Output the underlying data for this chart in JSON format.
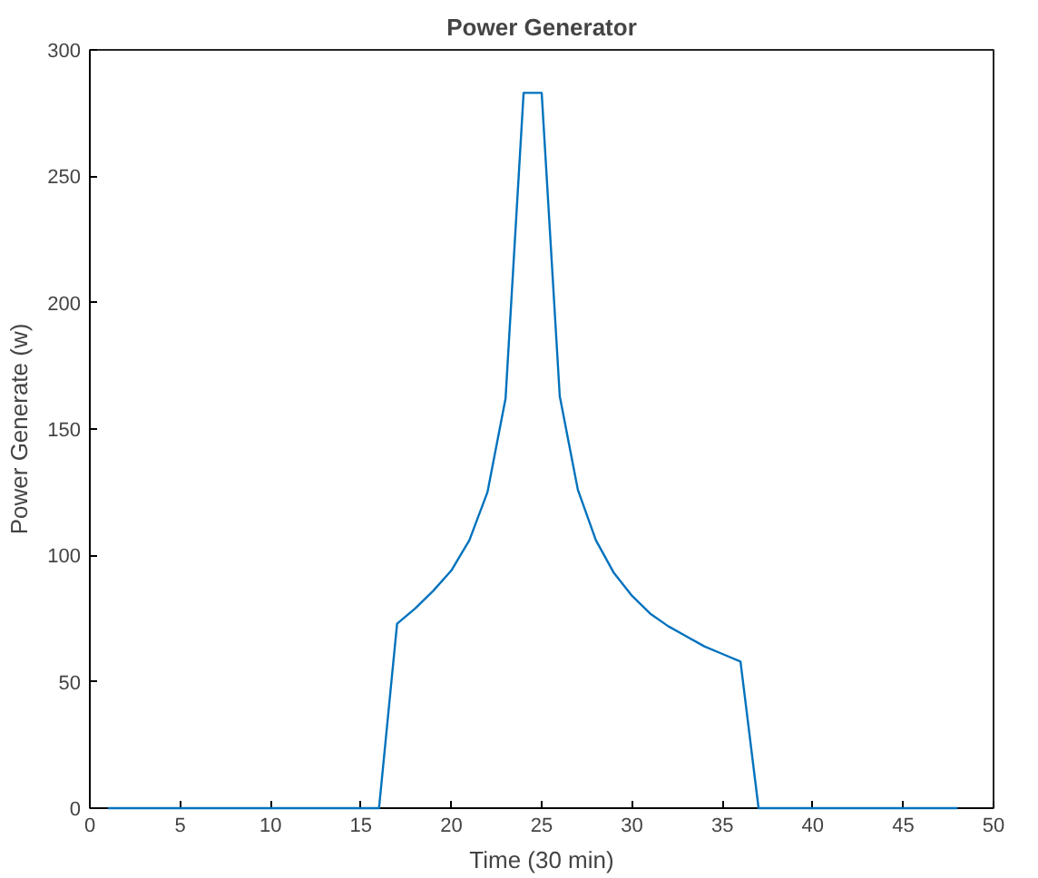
{
  "chart_data": {
    "type": "line",
    "title": "Power Generator",
    "xlabel": "Time (30 min)",
    "ylabel": "Power Generate (w)",
    "x": [
      1,
      2,
      3,
      4,
      5,
      6,
      7,
      8,
      9,
      10,
      11,
      12,
      13,
      14,
      15,
      16,
      17,
      18,
      19,
      20,
      21,
      22,
      23,
      24,
      25,
      26,
      27,
      28,
      29,
      30,
      31,
      32,
      33,
      34,
      35,
      36,
      37,
      38,
      39,
      40,
      41,
      42,
      43,
      44,
      45,
      46,
      47,
      48
    ],
    "series": [
      {
        "color": "#0072bd",
        "values": [
          0,
          0,
          0,
          0,
          0,
          0,
          0,
          0,
          0,
          0,
          0,
          0,
          0,
          0,
          0,
          0,
          73,
          79,
          86,
          94,
          106,
          125,
          162,
          283,
          283,
          163,
          126,
          106,
          93,
          84,
          77,
          72,
          68,
          64,
          61,
          58,
          0,
          0,
          0,
          0,
          0,
          0,
          0,
          0,
          0,
          0,
          0,
          0
        ]
      }
    ],
    "xlim": [
      0,
      50
    ],
    "ylim": [
      0,
      300
    ],
    "xticks": [
      0,
      5,
      10,
      15,
      20,
      25,
      30,
      35,
      40,
      45,
      50
    ],
    "yticks": [
      0,
      50,
      100,
      150,
      200,
      250,
      300
    ],
    "grid": false,
    "line_style": "solid"
  }
}
